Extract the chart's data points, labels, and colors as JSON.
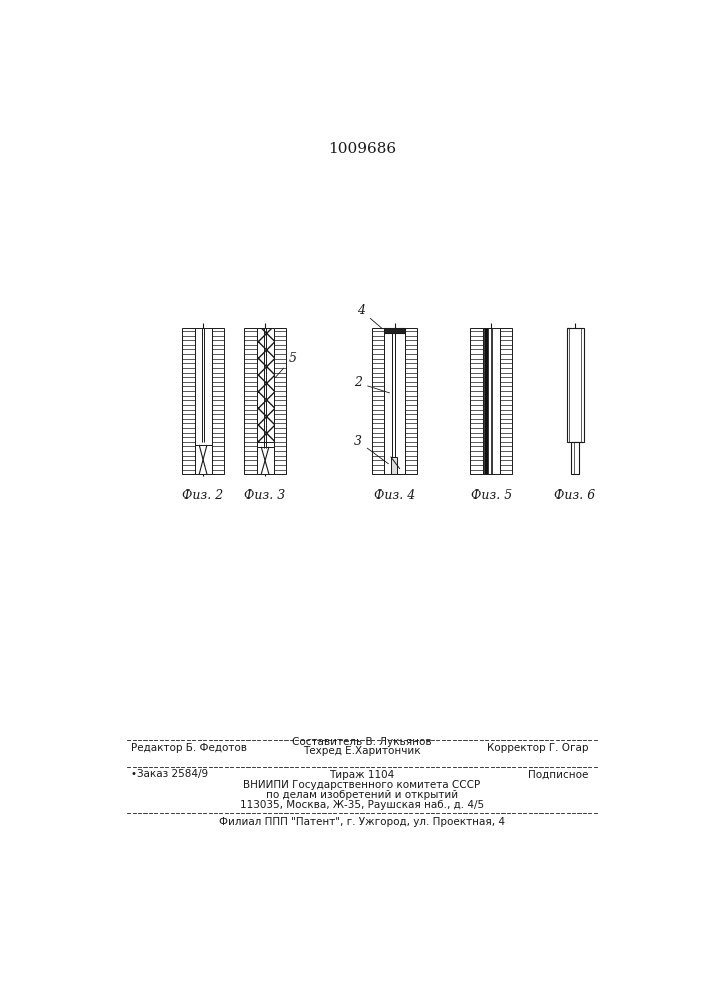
{
  "title": "1009686",
  "bg_color": "#ffffff",
  "line_color": "#1a1a1a",
  "fig_labels": [
    "Физ. 2",
    "Физ. 3",
    "Физ. 4",
    "Физ. 5",
    "Физ. 6"
  ],
  "footer": {
    "editor": "Редактор Б. Федотов",
    "sostavitel": "Составитель В. Лукьянов",
    "tehred": "Техред Е.Харитончик",
    "korrektor": "Корректор Г. Огар",
    "zakaz": "•Заказ 2584/9",
    "tirazh": "Тираж 1104",
    "podpisnoe": "Подписное",
    "vniip1": "ВНИИПИ Государственного комитета СССР",
    "vniip2": "по делам изобретений и открытий",
    "vniip3": "113035, Москва, Ж-35, Раушская наб., д. 4/5",
    "filial": "Филиал ППП \"Патент\", г. Ужгород, ул. Проектная, 4"
  }
}
